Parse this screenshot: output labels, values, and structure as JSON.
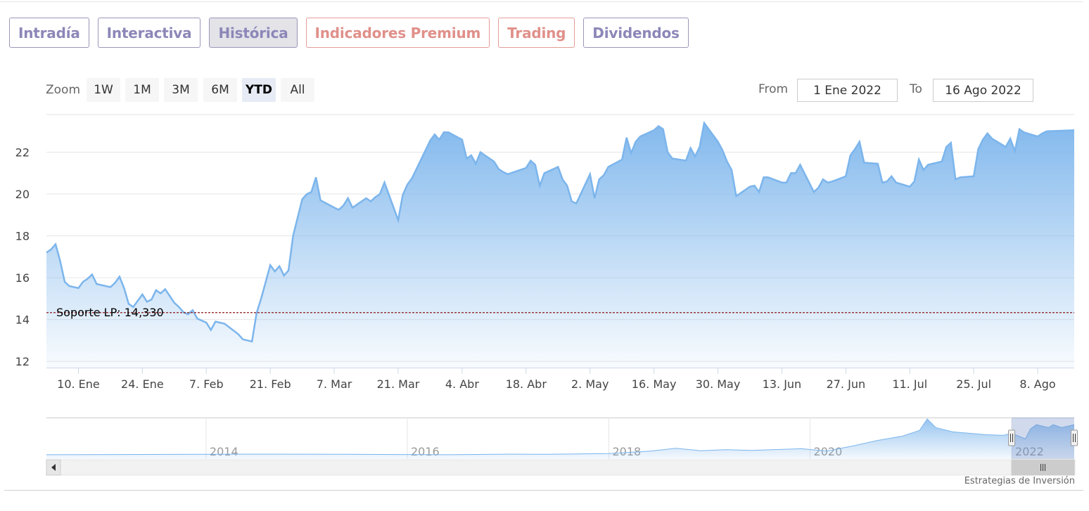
{
  "tabs": [
    {
      "label": "Intradía",
      "color": "purple",
      "active": false
    },
    {
      "label": "Interactiva",
      "color": "purple",
      "active": false
    },
    {
      "label": "Histórica",
      "color": "purple",
      "active": true
    },
    {
      "label": "Indicadores Premium",
      "color": "red",
      "active": false
    },
    {
      "label": "Trading",
      "color": "red",
      "active": false
    },
    {
      "label": "Dividendos",
      "color": "purple",
      "active": false
    }
  ],
  "range_selector": {
    "zoom_label": "Zoom",
    "buttons": [
      "1W",
      "1M",
      "3M",
      "6M",
      "YTD",
      "All"
    ],
    "selected": "YTD",
    "from_label": "From",
    "from_value": "1 Ene 2022",
    "to_label": "To",
    "to_value": "16 Ago 2022"
  },
  "colors": {
    "line": "#7cb5ec",
    "support_line": "#8b1a1a",
    "tab_purple": "#8c87b8",
    "tab_red": "#e0908a"
  },
  "chart_data": {
    "type": "area",
    "title": "",
    "xlabel": "",
    "ylabel": "",
    "ylim": [
      11.7,
      23.8
    ],
    "yticks": [
      12,
      14,
      16,
      18,
      20,
      22
    ],
    "xticks": [
      "10. Ene",
      "24. Ene",
      "7. Feb",
      "21. Feb",
      "7. Mar",
      "21. Mar",
      "4. Abr",
      "18. Abr",
      "2. May",
      "16. May",
      "30. May",
      "13. Jun",
      "27. Jun",
      "11. Jul",
      "25. Jul",
      "8. Ago"
    ],
    "x_start": "2022-01-03",
    "x_end": "2022-08-16",
    "grid": true,
    "series": [
      {
        "name": "",
        "points": [
          [
            "2022-01-03",
            17.2
          ],
          [
            "2022-01-04",
            17.35
          ],
          [
            "2022-01-05",
            17.6
          ],
          [
            "2022-01-06",
            16.8
          ],
          [
            "2022-01-07",
            15.8
          ],
          [
            "2022-01-08",
            15.6
          ],
          [
            "2022-01-10",
            15.5
          ],
          [
            "2022-01-11",
            15.8
          ],
          [
            "2022-01-12",
            15.95
          ],
          [
            "2022-01-13",
            16.15
          ],
          [
            "2022-01-14",
            15.7
          ],
          [
            "2022-01-15",
            15.65
          ],
          [
            "2022-01-17",
            15.55
          ],
          [
            "2022-01-18",
            15.75
          ],
          [
            "2022-01-19",
            16.05
          ],
          [
            "2022-01-20",
            15.5
          ],
          [
            "2022-01-21",
            14.75
          ],
          [
            "2022-01-22",
            14.6
          ],
          [
            "2022-01-24",
            15.2
          ],
          [
            "2022-01-25",
            14.85
          ],
          [
            "2022-01-26",
            14.95
          ],
          [
            "2022-01-27",
            15.4
          ],
          [
            "2022-01-28",
            15.25
          ],
          [
            "2022-01-29",
            15.45
          ],
          [
            "2022-01-31",
            14.8
          ],
          [
            "2022-02-01",
            14.6
          ],
          [
            "2022-02-02",
            14.35
          ],
          [
            "2022-02-03",
            14.25
          ],
          [
            "2022-02-04",
            14.45
          ],
          [
            "2022-02-05",
            14.05
          ],
          [
            "2022-02-07",
            13.85
          ],
          [
            "2022-02-08",
            13.5
          ],
          [
            "2022-02-09",
            13.9
          ],
          [
            "2022-02-10",
            13.85
          ],
          [
            "2022-02-11",
            13.8
          ],
          [
            "2022-02-14",
            13.3
          ],
          [
            "2022-02-15",
            13.05
          ],
          [
            "2022-02-16",
            13.0
          ],
          [
            "2022-02-17",
            12.95
          ],
          [
            "2022-02-18",
            14.3
          ],
          [
            "2022-02-19",
            15.0
          ],
          [
            "2022-02-21",
            16.6
          ],
          [
            "2022-02-22",
            16.3
          ],
          [
            "2022-02-23",
            16.55
          ],
          [
            "2022-02-24",
            16.1
          ],
          [
            "2022-02-25",
            16.35
          ],
          [
            "2022-02-26",
            18.0
          ],
          [
            "2022-02-28",
            19.75
          ],
          [
            "2022-03-01",
            20.0
          ],
          [
            "2022-03-02",
            20.1
          ],
          [
            "2022-03-03",
            20.8
          ],
          [
            "2022-03-04",
            19.7
          ],
          [
            "2022-03-07",
            19.35
          ],
          [
            "2022-03-08",
            19.25
          ],
          [
            "2022-03-09",
            19.45
          ],
          [
            "2022-03-10",
            19.8
          ],
          [
            "2022-03-11",
            19.35
          ],
          [
            "2022-03-14",
            19.8
          ],
          [
            "2022-03-15",
            19.65
          ],
          [
            "2022-03-16",
            19.85
          ],
          [
            "2022-03-17",
            20.0
          ],
          [
            "2022-03-18",
            20.55
          ],
          [
            "2022-03-21",
            18.75
          ],
          [
            "2022-03-22",
            19.95
          ],
          [
            "2022-03-23",
            20.45
          ],
          [
            "2022-03-24",
            20.75
          ],
          [
            "2022-03-25",
            21.2
          ],
          [
            "2022-03-28",
            22.55
          ],
          [
            "2022-03-29",
            22.85
          ],
          [
            "2022-03-30",
            22.6
          ],
          [
            "2022-03-31",
            22.95
          ],
          [
            "2022-04-01",
            22.95
          ],
          [
            "2022-04-04",
            22.6
          ],
          [
            "2022-04-05",
            21.7
          ],
          [
            "2022-04-06",
            21.85
          ],
          [
            "2022-04-07",
            21.45
          ],
          [
            "2022-04-08",
            22.0
          ],
          [
            "2022-04-11",
            21.55
          ],
          [
            "2022-04-12",
            21.2
          ],
          [
            "2022-04-13",
            21.05
          ],
          [
            "2022-04-14",
            20.95
          ],
          [
            "2022-04-18",
            21.25
          ],
          [
            "2022-04-19",
            21.6
          ],
          [
            "2022-04-20",
            21.4
          ],
          [
            "2022-04-21",
            20.4
          ],
          [
            "2022-04-22",
            21.0
          ],
          [
            "2022-04-25",
            21.3
          ],
          [
            "2022-04-26",
            20.7
          ],
          [
            "2022-04-27",
            20.4
          ],
          [
            "2022-04-28",
            19.65
          ],
          [
            "2022-04-29",
            19.55
          ],
          [
            "2022-05-02",
            20.95
          ],
          [
            "2022-05-03",
            19.8
          ],
          [
            "2022-05-04",
            20.7
          ],
          [
            "2022-05-05",
            20.9
          ],
          [
            "2022-05-06",
            21.3
          ],
          [
            "2022-05-09",
            21.65
          ],
          [
            "2022-05-10",
            22.7
          ],
          [
            "2022-05-11",
            21.95
          ],
          [
            "2022-05-12",
            22.5
          ],
          [
            "2022-05-13",
            22.75
          ],
          [
            "2022-05-16",
            23.05
          ],
          [
            "2022-05-17",
            23.25
          ],
          [
            "2022-05-18",
            23.1
          ],
          [
            "2022-05-19",
            22.0
          ],
          [
            "2022-05-20",
            21.7
          ],
          [
            "2022-05-23",
            21.6
          ],
          [
            "2022-05-24",
            22.2
          ],
          [
            "2022-05-25",
            21.8
          ],
          [
            "2022-05-26",
            22.25
          ],
          [
            "2022-05-27",
            23.4
          ],
          [
            "2022-05-30",
            22.5
          ],
          [
            "2022-05-31",
            22.1
          ],
          [
            "2022-06-01",
            21.55
          ],
          [
            "2022-06-02",
            21.15
          ],
          [
            "2022-06-03",
            19.9
          ],
          [
            "2022-06-06",
            20.35
          ],
          [
            "2022-06-07",
            20.4
          ],
          [
            "2022-06-08",
            20.1
          ],
          [
            "2022-06-09",
            20.8
          ],
          [
            "2022-06-10",
            20.8
          ],
          [
            "2022-06-13",
            20.55
          ],
          [
            "2022-06-14",
            20.55
          ],
          [
            "2022-06-15",
            21.0
          ],
          [
            "2022-06-16",
            21.0
          ],
          [
            "2022-06-17",
            21.4
          ],
          [
            "2022-06-20",
            20.1
          ],
          [
            "2022-06-21",
            20.3
          ],
          [
            "2022-06-22",
            20.7
          ],
          [
            "2022-06-23",
            20.55
          ],
          [
            "2022-06-24",
            20.6
          ],
          [
            "2022-06-27",
            20.85
          ],
          [
            "2022-06-28",
            21.85
          ],
          [
            "2022-06-29",
            22.15
          ],
          [
            "2022-06-30",
            22.5
          ],
          [
            "2022-07-01",
            21.5
          ],
          [
            "2022-07-04",
            21.45
          ],
          [
            "2022-07-05",
            20.55
          ],
          [
            "2022-07-06",
            20.6
          ],
          [
            "2022-07-07",
            20.85
          ],
          [
            "2022-07-08",
            20.55
          ],
          [
            "2022-07-11",
            20.35
          ],
          [
            "2022-07-12",
            20.6
          ],
          [
            "2022-07-13",
            21.65
          ],
          [
            "2022-07-14",
            21.15
          ],
          [
            "2022-07-15",
            21.4
          ],
          [
            "2022-07-18",
            21.55
          ],
          [
            "2022-07-19",
            22.25
          ],
          [
            "2022-07-20",
            22.45
          ],
          [
            "2022-07-21",
            20.7
          ],
          [
            "2022-07-22",
            20.8
          ],
          [
            "2022-07-25",
            20.85
          ],
          [
            "2022-07-26",
            22.15
          ],
          [
            "2022-07-27",
            22.6
          ],
          [
            "2022-07-28",
            22.9
          ],
          [
            "2022-07-29",
            22.65
          ],
          [
            "2022-08-01",
            22.25
          ],
          [
            "2022-08-02",
            22.65
          ],
          [
            "2022-08-03",
            22.05
          ],
          [
            "2022-08-04",
            23.1
          ],
          [
            "2022-08-05",
            22.95
          ],
          [
            "2022-08-08",
            22.75
          ],
          [
            "2022-08-09",
            22.9
          ],
          [
            "2022-08-10",
            23.0
          ],
          [
            "2022-08-16",
            23.05
          ]
        ]
      }
    ],
    "annotations": [
      {
        "type": "horizontal_line",
        "value": 14.33,
        "label": "Soporte LP: 14,330",
        "style": "dashed"
      }
    ],
    "navigator": {
      "labels": [
        "2014",
        "2016",
        "2018",
        "2020",
        "2022"
      ],
      "x_start": "2012-06-01",
      "x_end": "2022-08-16",
      "selected_from": "2022-01-01",
      "selected_to": "2022-08-16",
      "points": [
        [
          "2012-06-01",
          2.0
        ],
        [
          "2013-06-01",
          2.2
        ],
        [
          "2014-06-01",
          2.4
        ],
        [
          "2015-06-01",
          2.3
        ],
        [
          "2016-06-01",
          2.0
        ],
        [
          "2017-01-01",
          2.4
        ],
        [
          "2017-06-01",
          2.3
        ],
        [
          "2018-01-01",
          2.8
        ],
        [
          "2018-06-01",
          4.5
        ],
        [
          "2018-09-01",
          6.5
        ],
        [
          "2018-12-01",
          4.8
        ],
        [
          "2019-03-01",
          5.5
        ],
        [
          "2019-06-01",
          5.0
        ],
        [
          "2019-12-01",
          6.2
        ],
        [
          "2020-03-01",
          4.6
        ],
        [
          "2020-06-01",
          8.0
        ],
        [
          "2020-09-01",
          12.0
        ],
        [
          "2020-12-01",
          15.0
        ],
        [
          "2021-02-01",
          19.0
        ],
        [
          "2021-03-01",
          27.0
        ],
        [
          "2021-04-01",
          21.0
        ],
        [
          "2021-06-01",
          18.0
        ],
        [
          "2021-08-01",
          17.0
        ],
        [
          "2021-10-01",
          16.0
        ],
        [
          "2021-12-01",
          15.5
        ],
        [
          "2022-01-01",
          17.0
        ],
        [
          "2022-02-20",
          13.0
        ],
        [
          "2022-03-10",
          20.0
        ],
        [
          "2022-04-01",
          23.0
        ],
        [
          "2022-05-15",
          21.0
        ],
        [
          "2022-06-01",
          23.0
        ],
        [
          "2022-07-01",
          21.0
        ],
        [
          "2022-08-16",
          23.0
        ]
      ]
    }
  },
  "credit": "Estrategias de Inversión"
}
